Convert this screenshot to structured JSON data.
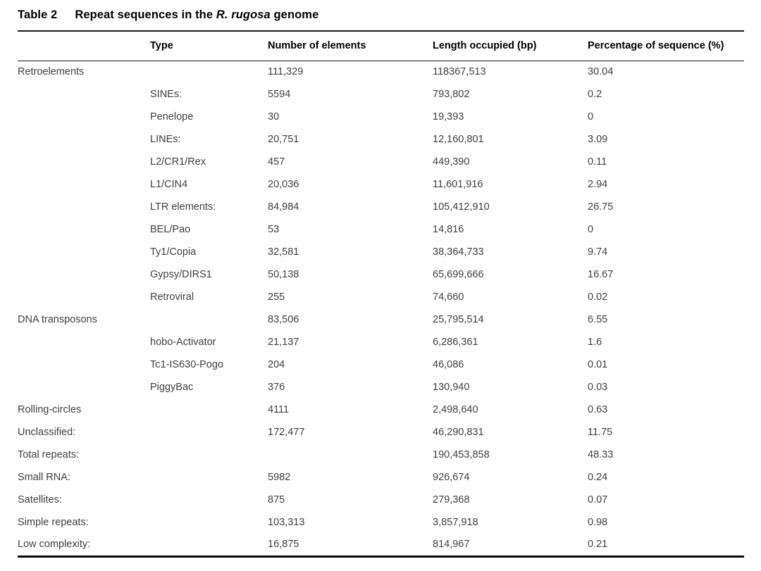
{
  "title": {
    "tag": "Table 2",
    "before_italic": "Repeat sequences in the ",
    "italic_species": "R. rugosa",
    "after_italic": " genome"
  },
  "table": {
    "columns": [
      "",
      "Type",
      "Number of elements",
      "Length occupied (bp)",
      "Percentage of sequence (%)"
    ],
    "rows": [
      {
        "category": "Retroelements",
        "type": "",
        "number": "111,329",
        "length": "118367,513",
        "percent": "30.04"
      },
      {
        "category": "",
        "type": "SINEs:",
        "number": "5594",
        "length": "793,802",
        "percent": "0.2"
      },
      {
        "category": "",
        "type": "Penelope",
        "number": "30",
        "length": "19,393",
        "percent": "0"
      },
      {
        "category": "",
        "type": "LINEs:",
        "number": "20,751",
        "length": "12,160,801",
        "percent": "3.09"
      },
      {
        "category": "",
        "type": "L2/CR1/Rex",
        "number": "457",
        "length": "449,390",
        "percent": "0.11"
      },
      {
        "category": "",
        "type": "L1/CIN4",
        "number": "20,036",
        "length": "11,601,916",
        "percent": "2.94"
      },
      {
        "category": "",
        "type": "LTR elements:",
        "number": "84,984",
        "length": "105,412,910",
        "percent": "26.75"
      },
      {
        "category": "",
        "type": "BEL/Pao",
        "number": "53",
        "length": "14,816",
        "percent": "0"
      },
      {
        "category": "",
        "type": "Ty1/Copia",
        "number": "32,581",
        "length": "38,364,733",
        "percent": "9.74"
      },
      {
        "category": "",
        "type": "Gypsy/DIRS1",
        "number": "50,138",
        "length": "65,699,666",
        "percent": "16.67"
      },
      {
        "category": "",
        "type": "Retroviral",
        "number": "255",
        "length": "74,660",
        "percent": "0.02"
      },
      {
        "category": "DNA transposons",
        "type": "",
        "number": "83,506",
        "length": "25,795,514",
        "percent": "6.55"
      },
      {
        "category": "",
        "type": "hobo-Activator",
        "number": "21,137",
        "length": "6,286,361",
        "percent": "1.6"
      },
      {
        "category": "",
        "type": "Tc1-IS630-Pogo",
        "number": "204",
        "length": "46,086",
        "percent": "0.01"
      },
      {
        "category": "",
        "type": "PiggyBac",
        "number": "376",
        "length": "130,940",
        "percent": "0.03"
      },
      {
        "category": "Rolling-circles",
        "type": "",
        "number": "4111",
        "length": "2,498,640",
        "percent": "0.63"
      },
      {
        "category": "Unclassified:",
        "type": "",
        "number": "172,477",
        "length": "46,290,831",
        "percent": "11.75"
      },
      {
        "category": "Total repeats:",
        "type": "",
        "number": "",
        "length": "190,453,858",
        "percent": "48.33"
      },
      {
        "category": "Small RNA:",
        "type": "",
        "number": "5982",
        "length": "926,674",
        "percent": "0.24"
      },
      {
        "category": "Satellites:",
        "type": "",
        "number": "875",
        "length": "279,368",
        "percent": "0.07"
      },
      {
        "category": "Simple repeats:",
        "type": "",
        "number": "103,313",
        "length": "3,857,918",
        "percent": "0.98"
      },
      {
        "category": "Low complexity:",
        "type": "",
        "number": "16,875",
        "length": "814,967",
        "percent": "0.21"
      }
    ]
  },
  "colors": {
    "header_text": "#000000",
    "body_text": "#3f3f3f",
    "rule": "#1b1b1b",
    "background": "#ffffff"
  }
}
